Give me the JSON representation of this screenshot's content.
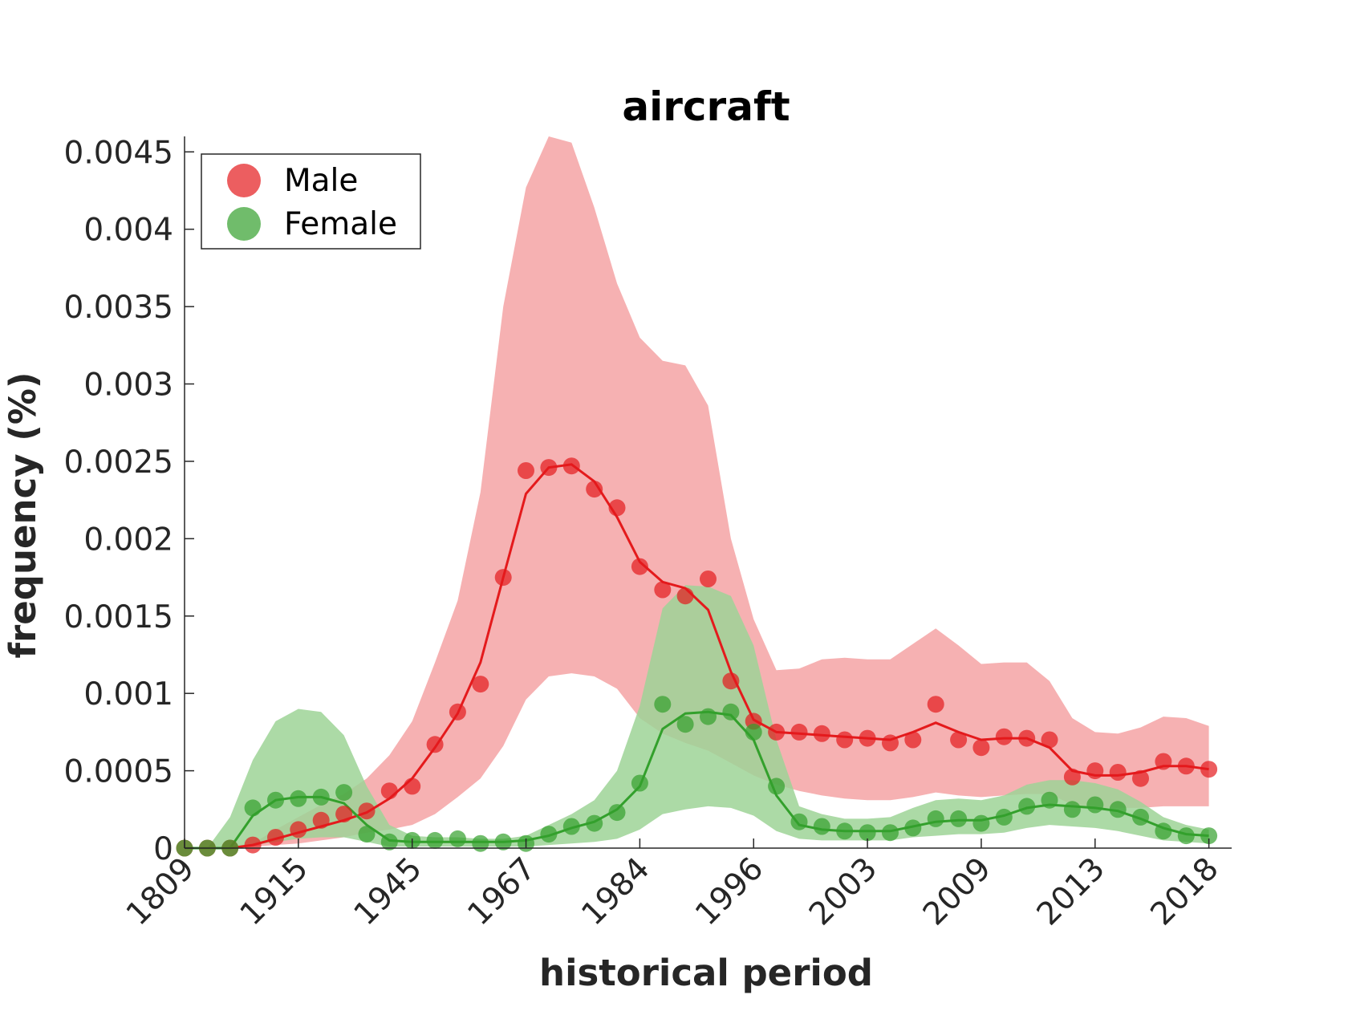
{
  "chart_data": {
    "type": "line",
    "title": "aircraft",
    "xlabel": "historical period",
    "ylabel": "frequency (%)",
    "ylim": [
      0,
      0.0046
    ],
    "yticks": [
      0,
      0.0005,
      0.001,
      0.0015,
      0.002,
      0.0025,
      0.003,
      0.0035,
      0.004,
      0.0045
    ],
    "ytick_labels": [
      "0",
      "0.0005",
      "0.001",
      "0.0015",
      "0.002",
      "0.0025",
      "0.003",
      "0.0035",
      "0.004",
      "0.0045"
    ],
    "x_period_index_range": [
      1,
      47
    ],
    "xticks_index": [
      1,
      6,
      11,
      16,
      21,
      26,
      31,
      36,
      41,
      46
    ],
    "xtick_labels": [
      "1809",
      "1915",
      "1945",
      "1967",
      "1984",
      "1996",
      "2003",
      "2009",
      "2013",
      "2018"
    ],
    "legend": {
      "position": "top-left",
      "entries": [
        "Male",
        "Female"
      ]
    },
    "grid": false,
    "series": [
      {
        "name": "Male",
        "color": "#e41a1c",
        "band_color": "#f4a3a4",
        "points": [
          0,
          0,
          0,
          2e-05,
          7e-05,
          0.00012,
          0.00018,
          0.00022,
          0.00024,
          0.00037,
          0.0004,
          0.00067,
          0.00088,
          0.00106,
          0.00175,
          0.00244,
          0.00246,
          0.00247,
          0.00232,
          0.0022,
          0.00182,
          0.00167,
          0.00163,
          0.00174,
          0.00108,
          0.00082,
          0.00075,
          0.00075,
          0.00074,
          0.0007,
          0.00071,
          0.00068,
          0.0007,
          0.00093,
          0.0007,
          0.00065,
          0.00072,
          0.00071,
          0.0007,
          0.00046,
          0.0005,
          0.00049,
          0.00045,
          0.00056,
          0.00053,
          0.00051
        ],
        "smooth": [
          0,
          0,
          0,
          2e-05,
          6e-05,
          0.0001,
          0.00014,
          0.00018,
          0.00023,
          0.00032,
          0.00045,
          0.00065,
          0.00087,
          0.0012,
          0.00175,
          0.00229,
          0.00246,
          0.00248,
          0.00237,
          0.00214,
          0.00185,
          0.00172,
          0.00168,
          0.00154,
          0.00114,
          0.00083,
          0.00075,
          0.00074,
          0.00073,
          0.00072,
          0.00071,
          0.0007,
          0.00075,
          0.00081,
          0.00075,
          0.0007,
          0.00071,
          0.00071,
          0.00065,
          0.0005,
          0.00047,
          0.00047,
          0.00049,
          0.00053,
          0.00053,
          0.00051
        ],
        "band_upper": [
          0,
          0,
          0,
          3e-05,
          0.00012,
          0.0002,
          0.00028,
          0.00035,
          0.00045,
          0.0006,
          0.00082,
          0.0012,
          0.0016,
          0.0023,
          0.0035,
          0.00427,
          0.0046,
          0.00456,
          0.00414,
          0.00365,
          0.0033,
          0.00315,
          0.00312,
          0.00286,
          0.002,
          0.00148,
          0.00115,
          0.00116,
          0.00122,
          0.00123,
          0.00122,
          0.00122,
          0.00132,
          0.00142,
          0.00131,
          0.00119,
          0.0012,
          0.0012,
          0.00108,
          0.00084,
          0.00075,
          0.00074,
          0.00078,
          0.00085,
          0.00084,
          0.00079
        ],
        "band_lower": [
          0,
          0,
          0,
          1e-05,
          2e-05,
          3e-05,
          5e-05,
          7e-05,
          0.0001,
          0.00012,
          0.00015,
          0.00022,
          0.00033,
          0.00045,
          0.00066,
          0.00096,
          0.00111,
          0.00113,
          0.00111,
          0.00103,
          0.00084,
          0.00074,
          0.00068,
          0.00063,
          0.00055,
          0.00047,
          0.00041,
          0.00037,
          0.00034,
          0.00032,
          0.00031,
          0.00031,
          0.00033,
          0.00036,
          0.00034,
          0.00033,
          0.00034,
          0.00035,
          0.00035,
          0.00028,
          0.00026,
          0.00026,
          0.00026,
          0.00027,
          0.00027,
          0.00027
        ]
      },
      {
        "name": "Female",
        "color": "#33a02c",
        "band_color": "#9ed397",
        "points": [
          0,
          0,
          0,
          0.00026,
          0.00031,
          0.00032,
          0.00033,
          0.00036,
          9e-05,
          4e-05,
          5e-05,
          5e-05,
          6e-05,
          3e-05,
          4e-05,
          3e-05,
          9e-05,
          0.00014,
          0.00016,
          0.00023,
          0.00042,
          0.00093,
          0.0008,
          0.00085,
          0.00088,
          0.00075,
          0.0004,
          0.00017,
          0.00014,
          0.00011,
          0.0001,
          0.0001,
          0.00013,
          0.00019,
          0.00019,
          0.00016,
          0.0002,
          0.00027,
          0.00031,
          0.00025,
          0.00028,
          0.00025,
          0.0002,
          0.00011,
          8e-05,
          8e-05
        ],
        "smooth": [
          0,
          0,
          0,
          0.00021,
          0.00031,
          0.00033,
          0.00033,
          0.00029,
          0.00015,
          5e-05,
          4e-05,
          4e-05,
          4e-05,
          4e-05,
          4e-05,
          5e-05,
          8e-05,
          0.00013,
          0.00017,
          0.00025,
          0.0004,
          0.00077,
          0.00087,
          0.00088,
          0.00086,
          0.0007,
          0.00034,
          0.00015,
          0.00012,
          0.00011,
          0.00011,
          0.00011,
          0.00014,
          0.00017,
          0.00018,
          0.00018,
          0.00021,
          0.00026,
          0.00028,
          0.00027,
          0.00026,
          0.00024,
          0.00019,
          0.00013,
          9e-05,
          8e-05
        ],
        "band_upper": [
          0,
          0,
          0.0002,
          0.00057,
          0.00082,
          0.0009,
          0.00088,
          0.00073,
          0.0004,
          0.00015,
          8e-05,
          7e-05,
          7e-05,
          6e-05,
          6e-05,
          8e-05,
          0.00015,
          0.00022,
          0.00031,
          0.0005,
          0.00092,
          0.00155,
          0.0017,
          0.00169,
          0.00163,
          0.00131,
          0.0007,
          0.00027,
          0.00022,
          0.00019,
          0.00019,
          0.0002,
          0.00026,
          0.00031,
          0.00032,
          0.00031,
          0.00034,
          0.00041,
          0.00044,
          0.00044,
          0.00042,
          0.00038,
          0.0003,
          0.0002,
          0.00015,
          0.00012
        ],
        "band_lower": [
          0,
          0,
          0,
          2e-05,
          4e-05,
          6e-05,
          7e-05,
          7e-05,
          4e-05,
          1e-05,
          1e-05,
          1e-05,
          1e-05,
          1e-05,
          1e-05,
          1e-05,
          2e-05,
          3e-05,
          4e-05,
          6e-05,
          0.00012,
          0.00022,
          0.00025,
          0.00027,
          0.00026,
          0.00021,
          0.00011,
          6e-05,
          5e-05,
          5e-05,
          5e-05,
          5e-05,
          7e-05,
          8e-05,
          9e-05,
          9e-05,
          0.0001,
          0.00013,
          0.00015,
          0.00014,
          0.00013,
          0.00011,
          8e-05,
          5e-05,
          4e-05,
          3e-05
        ]
      }
    ]
  }
}
